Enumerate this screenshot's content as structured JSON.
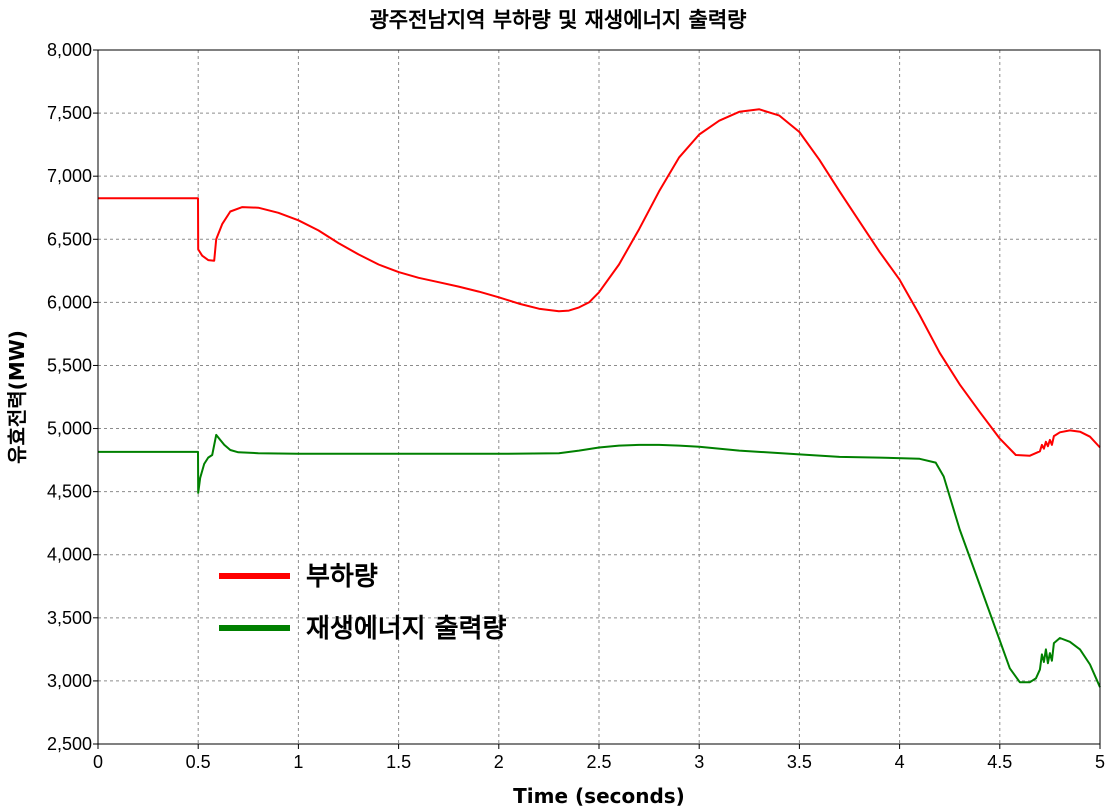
{
  "chart_data": {
    "type": "line",
    "title": "광주전남지역 부하량 및 재생에너지 출력량",
    "xlabel": "Time (seconds)",
    "ylabel": "유효전력(MW)",
    "xlim": [
      0,
      5
    ],
    "ylim": [
      2500,
      8000
    ],
    "grid": true,
    "legend_position": "bottom-left",
    "x_ticks": [
      "0",
      "0.5",
      "1",
      "1.5",
      "2",
      "2.5",
      "3",
      "3.5",
      "4",
      "4.5",
      "5"
    ],
    "y_ticks": [
      "2,500",
      "3,000",
      "3,500",
      "4,000",
      "4,500",
      "5,000",
      "5,500",
      "6,000",
      "6,500",
      "7,000",
      "7,500",
      "8,000"
    ],
    "series": [
      {
        "name": "부하량",
        "color": "#ff0000",
        "points": [
          [
            0,
            6825
          ],
          [
            0.499,
            6825
          ],
          [
            0.5,
            6420
          ],
          [
            0.52,
            6370
          ],
          [
            0.55,
            6335
          ],
          [
            0.58,
            6330
          ],
          [
            0.59,
            6500
          ],
          [
            0.62,
            6620
          ],
          [
            0.66,
            6720
          ],
          [
            0.72,
            6755
          ],
          [
            0.8,
            6750
          ],
          [
            0.9,
            6710
          ],
          [
            1.0,
            6650
          ],
          [
            1.1,
            6570
          ],
          [
            1.2,
            6470
          ],
          [
            1.3,
            6380
          ],
          [
            1.4,
            6300
          ],
          [
            1.5,
            6240
          ],
          [
            1.6,
            6195
          ],
          [
            1.7,
            6160
          ],
          [
            1.8,
            6125
          ],
          [
            1.9,
            6085
          ],
          [
            2.0,
            6040
          ],
          [
            2.1,
            5990
          ],
          [
            2.2,
            5950
          ],
          [
            2.3,
            5930
          ],
          [
            2.35,
            5935
          ],
          [
            2.4,
            5960
          ],
          [
            2.45,
            6000
          ],
          [
            2.5,
            6080
          ],
          [
            2.6,
            6300
          ],
          [
            2.7,
            6580
          ],
          [
            2.8,
            6880
          ],
          [
            2.9,
            7150
          ],
          [
            3.0,
            7330
          ],
          [
            3.1,
            7440
          ],
          [
            3.2,
            7510
          ],
          [
            3.3,
            7530
          ],
          [
            3.4,
            7480
          ],
          [
            3.5,
            7350
          ],
          [
            3.6,
            7130
          ],
          [
            3.7,
            6880
          ],
          [
            3.8,
            6640
          ],
          [
            3.9,
            6400
          ],
          [
            4.0,
            6180
          ],
          [
            4.1,
            5900
          ],
          [
            4.2,
            5600
          ],
          [
            4.3,
            5350
          ],
          [
            4.4,
            5130
          ],
          [
            4.5,
            4920
          ],
          [
            4.58,
            4790
          ],
          [
            4.65,
            4785
          ],
          [
            4.7,
            4820
          ],
          [
            4.71,
            4870
          ],
          [
            4.72,
            4840
          ],
          [
            4.73,
            4895
          ],
          [
            4.74,
            4860
          ],
          [
            4.75,
            4910
          ],
          [
            4.76,
            4870
          ],
          [
            4.77,
            4940
          ],
          [
            4.8,
            4970
          ],
          [
            4.85,
            4985
          ],
          [
            4.9,
            4975
          ],
          [
            4.95,
            4935
          ],
          [
            5.0,
            4850
          ]
        ]
      },
      {
        "name": "재생에너지 출력량",
        "color": "#008000",
        "points": [
          [
            0,
            4815
          ],
          [
            0.499,
            4815
          ],
          [
            0.5,
            4490
          ],
          [
            0.51,
            4610
          ],
          [
            0.53,
            4720
          ],
          [
            0.55,
            4770
          ],
          [
            0.57,
            4790
          ],
          [
            0.59,
            4950
          ],
          [
            0.61,
            4910
          ],
          [
            0.63,
            4870
          ],
          [
            0.66,
            4830
          ],
          [
            0.7,
            4812
          ],
          [
            0.8,
            4805
          ],
          [
            1.0,
            4800
          ],
          [
            1.5,
            4800
          ],
          [
            2.0,
            4800
          ],
          [
            2.3,
            4805
          ],
          [
            2.4,
            4825
          ],
          [
            2.5,
            4850
          ],
          [
            2.6,
            4865
          ],
          [
            2.7,
            4870
          ],
          [
            2.8,
            4870
          ],
          [
            2.9,
            4865
          ],
          [
            3.0,
            4855
          ],
          [
            3.2,
            4825
          ],
          [
            3.5,
            4795
          ],
          [
            3.7,
            4775
          ],
          [
            3.9,
            4770
          ],
          [
            4.1,
            4760
          ],
          [
            4.18,
            4730
          ],
          [
            4.22,
            4620
          ],
          [
            4.3,
            4200
          ],
          [
            4.4,
            3760
          ],
          [
            4.5,
            3320
          ],
          [
            4.55,
            3100
          ],
          [
            4.6,
            2990
          ],
          [
            4.65,
            2990
          ],
          [
            4.68,
            3020
          ],
          [
            4.7,
            3090
          ],
          [
            4.71,
            3210
          ],
          [
            4.72,
            3150
          ],
          [
            4.73,
            3250
          ],
          [
            4.74,
            3140
          ],
          [
            4.75,
            3220
          ],
          [
            4.76,
            3160
          ],
          [
            4.77,
            3300
          ],
          [
            4.8,
            3340
          ],
          [
            4.85,
            3310
          ],
          [
            4.9,
            3250
          ],
          [
            4.95,
            3130
          ],
          [
            5.0,
            2950
          ]
        ]
      }
    ]
  }
}
